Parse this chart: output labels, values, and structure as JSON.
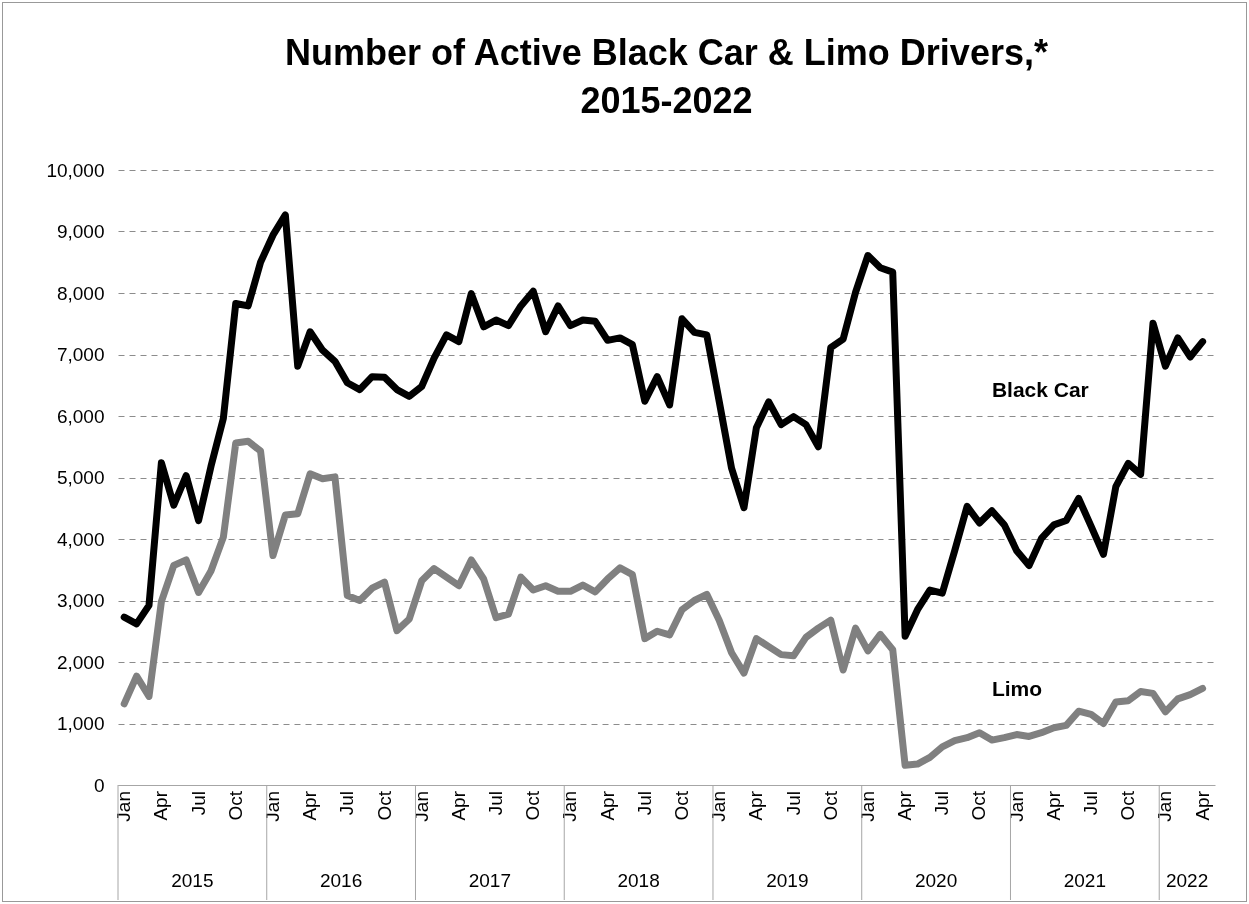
{
  "chart_data": {
    "type": "line",
    "title": "Number of Active Black Car & Limo Drivers,*",
    "subtitle": "2015-2022",
    "categories": [
      "Jan",
      null,
      null,
      "Apr",
      null,
      null,
      "Jul",
      null,
      null,
      "Oct",
      null,
      null,
      "Jan",
      null,
      null,
      "Apr",
      null,
      null,
      "Jul",
      null,
      null,
      "Oct",
      null,
      null,
      "Jan",
      null,
      null,
      "Apr",
      null,
      null,
      "Jul",
      null,
      null,
      "Oct",
      null,
      null,
      "Jan",
      null,
      null,
      "Apr",
      null,
      null,
      "Jul",
      null,
      null,
      "Oct",
      null,
      null,
      "Jan",
      null,
      null,
      "Apr",
      null,
      null,
      "Jul",
      null,
      null,
      "Oct",
      null,
      null,
      "Jan",
      null,
      null,
      "Apr",
      null,
      null,
      "Jul",
      null,
      null,
      "Oct",
      null,
      null,
      "Jan",
      null,
      null,
      "Apr",
      null,
      null,
      "Jul",
      null,
      null,
      "Oct",
      null,
      null,
      "Jan",
      null,
      null,
      "Apr"
    ],
    "series": [
      {
        "name": "Black Car",
        "color": "#000000",
        "values": [
          2730,
          2620,
          2920,
          5240,
          4550,
          5030,
          4300,
          5180,
          5960,
          7830,
          7790,
          8500,
          8940,
          9270,
          6810,
          7370,
          7070,
          6890,
          6540,
          6430,
          6640,
          6630,
          6430,
          6320,
          6480,
          6940,
          7320,
          7210,
          7990,
          7450,
          7560,
          7470,
          7790,
          8030,
          7370,
          7790,
          7470,
          7560,
          7540,
          7230,
          7270,
          7160,
          6240,
          6640,
          6180,
          7580,
          7360,
          7320,
          6240,
          5150,
          4510,
          5810,
          6230,
          5860,
          5990,
          5860,
          5500,
          7110,
          7250,
          8010,
          8610,
          8410,
          8340,
          2420,
          2850,
          3170,
          3120,
          3810,
          4530,
          4260,
          4460,
          4230,
          3810,
          3570,
          4010,
          4230,
          4300,
          4660,
          4210,
          3750,
          4850,
          5230,
          5050,
          7510,
          6810,
          7270,
          6960,
          7210
        ]
      },
      {
        "name": "Limo",
        "color": "#808080",
        "values": [
          1320,
          1770,
          1440,
          2980,
          3570,
          3660,
          3130,
          3480,
          4030,
          5560,
          5590,
          5430,
          3730,
          4390,
          4410,
          5060,
          4980,
          5010,
          3080,
          3000,
          3200,
          3300,
          2510,
          2700,
          3320,
          3520,
          3380,
          3240,
          3660,
          3350,
          2720,
          2780,
          3380,
          3170,
          3240,
          3150,
          3150,
          3250,
          3140,
          3350,
          3530,
          3420,
          2380,
          2500,
          2440,
          2850,
          3000,
          3100,
          2680,
          2150,
          1820,
          2380,
          2250,
          2120,
          2100,
          2400,
          2550,
          2680,
          1870,
          2550,
          2180,
          2450,
          2200,
          320,
          340,
          450,
          620,
          720,
          770,
          850,
          730,
          770,
          820,
          790,
          850,
          930,
          970,
          1200,
          1150,
          1000,
          1350,
          1370,
          1520,
          1490,
          1190,
          1400,
          1470,
          1570
        ]
      }
    ],
    "annotations": [
      "2015",
      "2016",
      "2017",
      "2018",
      "2019",
      "2020",
      "2021",
      "2022"
    ],
    "ylim": [
      0,
      10000
    ],
    "yticks": [
      0,
      {
        "value": 1000,
        "label": "1,000"
      },
      {
        "value": 2000,
        "label": "2,000"
      },
      {
        "value": 3000,
        "label": "3,000"
      },
      {
        "value": 4000,
        "label": "4,000"
      },
      {
        "value": 5000,
        "label": "5,000"
      },
      {
        "value": 6000,
        "label": "6,000"
      },
      {
        "value": 7000,
        "label": "7,000"
      },
      {
        "value": 8000,
        "label": "8,000"
      },
      {
        "value": 9000,
        "label": "9,000"
      },
      {
        "value": 10000,
        "label": "10,000"
      }
    ],
    "legend": false,
    "grid": "y",
    "marker": "none",
    "line_style": "solid"
  }
}
